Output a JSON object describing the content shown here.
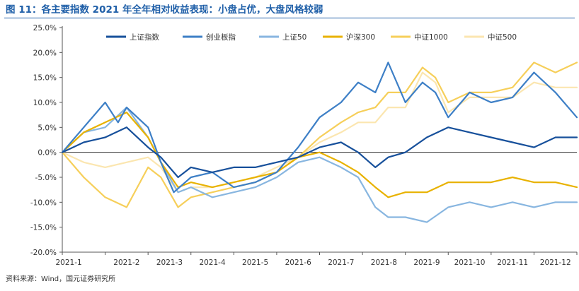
{
  "title": "图 11：各主要指数 2021 年全年相对收益表现：小盘占优，大盘风格较弱",
  "source": "资料来源：Wind，国元证券研究所",
  "chart_data": {
    "type": "line",
    "title": "",
    "xlabel": "",
    "ylabel": "",
    "ylim": [
      -20,
      25
    ],
    "yticks": [
      25,
      20,
      15,
      10,
      5,
      0,
      -5,
      -10,
      -15,
      -20
    ],
    "ytick_labels": [
      "25.0%",
      "20.0%",
      "15.0%",
      "10.0%",
      "5.0%",
      "0.0%",
      "-5.0%",
      "-10.0%",
      "-15.0%",
      "-20.0%"
    ],
    "x_labels": [
      "2021-1",
      "2021-2",
      "2021-3",
      "2021-4",
      "2021-5",
      "2021-6",
      "2021-7",
      "2021-8",
      "2021-9",
      "2021-10",
      "2021-11",
      "2021-12"
    ],
    "x_unit": "month index (0 = 2021-1 start, 12 = year end)",
    "legend_position": "top",
    "series": [
      {
        "name": "上证指数",
        "color": "#17509b",
        "x": [
          0,
          0.5,
          1,
          1.5,
          2,
          2.3,
          2.7,
          3,
          3.5,
          4,
          4.5,
          5,
          5.5,
          6,
          6.5,
          6.9,
          7.3,
          7.6,
          8,
          8.5,
          9,
          9.5,
          10,
          10.5,
          11,
          11.5,
          12
        ],
        "y": [
          0,
          2,
          3,
          5,
          1,
          -1,
          -5,
          -3,
          -4,
          -3,
          -3,
          -2,
          -1,
          1,
          2,
          0,
          -3,
          -1,
          0,
          3,
          5,
          4,
          3,
          2,
          1,
          3,
          3
        ]
      },
      {
        "name": "创业板指",
        "color": "#3d7fc6",
        "x": [
          0,
          0.5,
          1,
          1.3,
          1.5,
          2,
          2.3,
          2.6,
          3,
          3.5,
          4,
          4.5,
          5,
          5.5,
          6,
          6.5,
          6.9,
          7.3,
          7.6,
          8,
          8.4,
          8.7,
          9,
          9.5,
          10,
          10.5,
          11,
          11.5,
          12
        ],
        "y": [
          0,
          5,
          10,
          6,
          9,
          5,
          -2,
          -8,
          -5,
          -4,
          -7,
          -6,
          -4,
          1,
          7,
          10,
          14,
          12,
          18,
          10,
          14,
          12,
          7,
          12,
          10,
          11,
          16,
          12,
          7
        ]
      },
      {
        "name": "上证50",
        "color": "#88b6e0",
        "x": [
          0,
          0.5,
          1,
          1.5,
          2,
          2.3,
          2.7,
          3,
          3.5,
          4,
          4.5,
          5,
          5.5,
          6,
          6.5,
          6.9,
          7.3,
          7.6,
          8,
          8.5,
          9,
          9.5,
          10,
          10.5,
          11,
          11.5,
          12
        ],
        "y": [
          0,
          4,
          5,
          9,
          3,
          -2,
          -8,
          -7,
          -9,
          -8,
          -7,
          -5,
          -2,
          -1,
          -3,
          -5,
          -11,
          -13,
          -13,
          -14,
          -11,
          -10,
          -11,
          -10,
          -11,
          -10,
          -10
        ]
      },
      {
        "name": "沪深300",
        "color": "#e8b200",
        "x": [
          0,
          0.5,
          1,
          1.5,
          2,
          2.3,
          2.7,
          3,
          3.5,
          4,
          4.5,
          5,
          5.5,
          6,
          6.5,
          6.9,
          7.3,
          7.6,
          8,
          8.5,
          9,
          9.5,
          10,
          10.5,
          11,
          11.5,
          12
        ],
        "y": [
          0,
          4,
          6,
          8,
          3,
          -2,
          -7,
          -6,
          -7,
          -6,
          -5,
          -4,
          -1,
          0,
          -2,
          -4,
          -7,
          -9,
          -8,
          -8,
          -6,
          -6,
          -6,
          -5,
          -6,
          -6,
          -7
        ]
      },
      {
        "name": "中证1000",
        "color": "#f6cf5a",
        "x": [
          0,
          0.5,
          1,
          1.5,
          2,
          2.3,
          2.7,
          3,
          3.5,
          4,
          4.5,
          5,
          5.5,
          6,
          6.5,
          6.9,
          7.3,
          7.6,
          8,
          8.4,
          8.7,
          9,
          9.5,
          10,
          10.5,
          11,
          11.5,
          12
        ],
        "y": [
          0,
          -5,
          -9,
          -11,
          -3,
          -5,
          -11,
          -9,
          -8,
          -7,
          -6,
          -4,
          -1,
          3,
          6,
          8,
          9,
          12,
          12,
          17,
          15,
          10,
          12,
          12,
          13,
          18,
          16,
          18
        ]
      },
      {
        "name": "中证500",
        "color": "#fbe6b0",
        "x": [
          0,
          0.5,
          1,
          1.5,
          2,
          2.3,
          2.7,
          3,
          3.5,
          4,
          4.5,
          5,
          5.5,
          6,
          6.5,
          6.9,
          7.3,
          7.6,
          8,
          8.4,
          8.7,
          9,
          9.5,
          10,
          10.5,
          11,
          11.5,
          12
        ],
        "y": [
          0,
          -2,
          -3,
          -2,
          -1,
          -3,
          -8,
          -7,
          -7,
          -6,
          -5,
          -3,
          -1,
          2,
          4,
          6,
          6,
          9,
          9,
          16,
          14,
          8,
          11,
          11,
          11,
          14,
          13,
          13
        ]
      }
    ]
  }
}
